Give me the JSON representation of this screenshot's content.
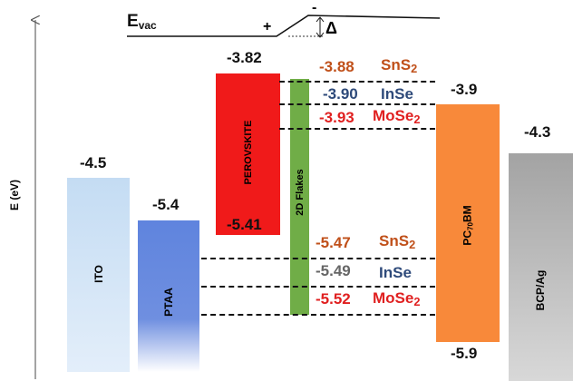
{
  "axis": {
    "label": "E (eV)"
  },
  "vacuum": {
    "label_main": "E",
    "label_sub": "vac",
    "plus": "+",
    "minus": "-",
    "delta": "Δ"
  },
  "layers": {
    "ito": {
      "name": "ITO",
      "level": "-4.5",
      "color": "#cfe2f5"
    },
    "ptaa": {
      "name": "PTAA",
      "level": "-5.4",
      "color": "#6f8fe0"
    },
    "perovskite": {
      "name": "PEROVSKITE",
      "cbm": "-3.82",
      "vbm": "-5.41",
      "color": "#f01a1a"
    },
    "flakes": {
      "name": "2D Flakes",
      "color": "#70ad47"
    },
    "pcbm": {
      "name_main": "PC",
      "name_sub": "70",
      "name_end": "BM",
      "lumo": "-3.9",
      "homo": "-5.9",
      "color": "#f8893a"
    },
    "bcp": {
      "name": "BCP/Ag",
      "level": "-4.3",
      "color": "#a0a0a0"
    }
  },
  "materials": [
    {
      "name": "SnS",
      "sub": "2",
      "cb": "-3.88",
      "vb": "-5.47",
      "color": "#c0501a"
    },
    {
      "name": "InSe",
      "sub": "",
      "cb": "-3.90",
      "vb": "-5.49",
      "color": "#2e4a7a"
    },
    {
      "name": "MoSe",
      "sub": "2",
      "cb": "-3.93",
      "vb": "-5.52",
      "color": "#e02020"
    }
  ],
  "colors": {
    "vb_inse_value": "#666666"
  }
}
